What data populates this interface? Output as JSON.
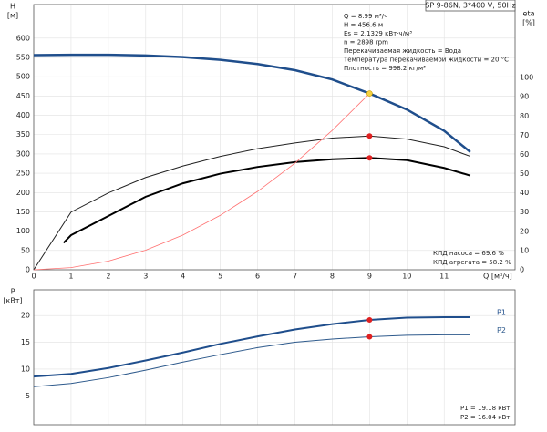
{
  "chart_data": [
    {
      "type": "line",
      "title": "SP 9-86N, 3*400 V, 50Hz",
      "y_label": "H",
      "y_unit": "[м]",
      "y2_label": "eta",
      "y2_unit": "[%]",
      "x_label": "Q [м³/ч]",
      "xlim": [
        0,
        12.9
      ],
      "xticks": [
        0,
        1,
        2,
        3,
        4,
        5,
        6,
        7,
        8,
        9,
        10,
        11
      ],
      "ylim": [
        0,
        687
      ],
      "yticks": [
        0,
        50,
        100,
        150,
        200,
        250,
        300,
        350,
        400,
        450,
        500,
        550,
        600
      ],
      "y2lim": [
        0,
        138
      ],
      "y2ticks": [
        0,
        10,
        20,
        30,
        40,
        50,
        60,
        70,
        80,
        90,
        100
      ],
      "grid": true,
      "annotations": [
        "Q = 8.99 м³/ч",
        "H = 456.6 м",
        "Es = 2.1329 кВт·ч/м³",
        "n = 2898 rpm",
        "Перекачиваемая жидкость = Вода",
        "Температура перекачиваемой жидкости = 20 °C",
        "Плотность = 998.2 кг/м³"
      ],
      "footnotes": [
        "КПД насоса = 69.6 %",
        "КПД агрегата = 58.2 %"
      ],
      "series": [
        {
          "color": "#1f4e8c",
          "width": 2.5,
          "axis": "y",
          "x": [
            0,
            1,
            2,
            3,
            4,
            5,
            6,
            7,
            8,
            9,
            10,
            11,
            11.7
          ],
          "values": [
            556,
            557,
            557,
            555,
            551,
            544,
            533,
            517,
            493,
            456.6,
            415,
            360,
            305
          ]
        },
        {
          "color": "#222222",
          "width": 1,
          "axis": "y2",
          "x": [
            0,
            1,
            2,
            3,
            4,
            5,
            6,
            7,
            8,
            9,
            10,
            11,
            11.7
          ],
          "values": [
            0,
            30,
            40,
            48,
            54,
            59,
            63,
            66,
            68.5,
            69.6,
            68,
            64,
            59
          ]
        },
        {
          "color": "#000000",
          "width": 2,
          "axis": "y2",
          "x": [
            0.8,
            1,
            2,
            3,
            4,
            5,
            6,
            7,
            8,
            9,
            10,
            11,
            11.7
          ],
          "values": [
            14,
            18,
            28,
            38,
            45,
            50,
            53.5,
            56,
            57.5,
            58.2,
            57,
            53,
            49
          ]
        },
        {
          "color": "#ff7070",
          "width": 0.8,
          "axis": "y",
          "x": [
            0,
            1,
            2,
            3,
            4,
            5,
            6,
            7,
            8,
            9
          ],
          "values": [
            0,
            5.6,
            22.5,
            50.7,
            90,
            141,
            203,
            276,
            361,
            456.6
          ]
        }
      ],
      "points": [
        {
          "x": 9,
          "y": 456.6,
          "axis": "y",
          "color": "#f5d142"
        },
        {
          "x": 9,
          "y": 69.6,
          "axis": "y2",
          "color": "#e02020"
        },
        {
          "x": 9,
          "y": 58.2,
          "axis": "y2",
          "color": "#e02020"
        }
      ]
    },
    {
      "type": "line",
      "y_label": "P",
      "y_unit": "[кВт]",
      "xlim": [
        0,
        12.9
      ],
      "ylim": [
        -0.4,
        24.8
      ],
      "yticks": [
        5,
        10,
        15,
        20
      ],
      "grid": true,
      "footnotes": [
        "P1 = 19.18 кВт",
        "P2 = 16.04 кВт"
      ],
      "series": [
        {
          "name": "P1",
          "color": "#1f4e8c",
          "width": 2,
          "axis": "y",
          "x": [
            0,
            1,
            2,
            3,
            4,
            5,
            6,
            7,
            8,
            9,
            10,
            11,
            11.7
          ],
          "values": [
            8.6,
            9.1,
            10.2,
            11.6,
            13.1,
            14.7,
            16.1,
            17.4,
            18.4,
            19.18,
            19.6,
            19.7,
            19.7
          ]
        },
        {
          "name": "P2",
          "color": "#2e5a8c",
          "width": 1,
          "axis": "y",
          "x": [
            0,
            1,
            2,
            3,
            4,
            5,
            6,
            7,
            8,
            9,
            10,
            11,
            11.7
          ],
          "values": [
            6.7,
            7.3,
            8.4,
            9.8,
            11.3,
            12.7,
            14.0,
            15.0,
            15.6,
            16.04,
            16.3,
            16.4,
            16.4
          ]
        }
      ],
      "points": [
        {
          "x": 9,
          "y": 19.18,
          "axis": "y",
          "color": "#e02020"
        },
        {
          "x": 9,
          "y": 16.04,
          "axis": "y",
          "color": "#e02020"
        }
      ]
    }
  ]
}
